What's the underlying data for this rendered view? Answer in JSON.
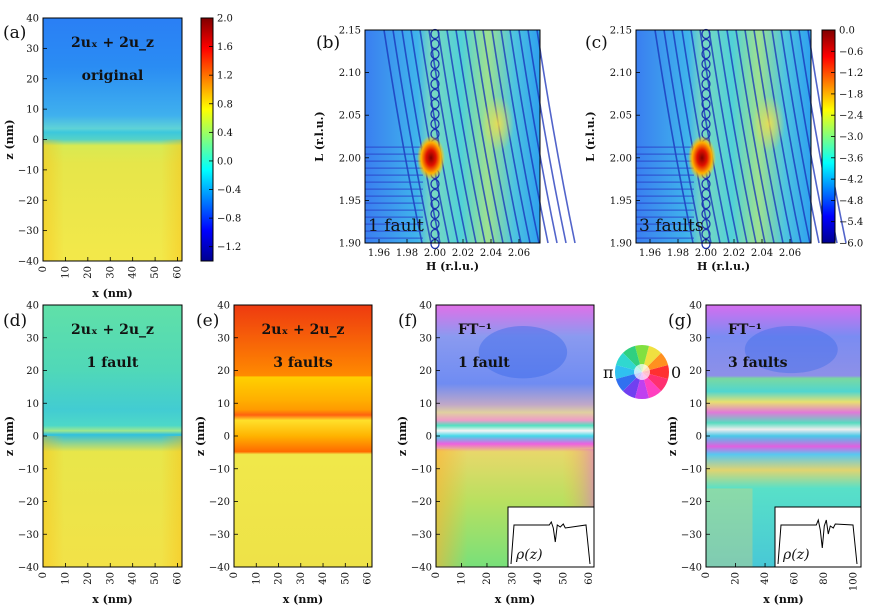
{
  "figure": "multi-panel strain and diffraction maps",
  "colorbars": {
    "strain": {
      "min": -1.4,
      "max": 2.0,
      "ticks": [
        "2.0",
        "1.6",
        "1.2",
        "0.8",
        "0.4",
        "0.0",
        "−0.4",
        "−0.8",
        "−1.2"
      ],
      "tick_values": [
        2.0,
        1.6,
        1.2,
        0.8,
        0.4,
        0.0,
        -0.4,
        -0.8,
        -1.2
      ]
    },
    "intensity": {
      "min": -6.0,
      "max": 0.0,
      "ticks": [
        "0.0",
        "−0.6",
        "−1.2",
        "−1.8",
        "−2.4",
        "−3.0",
        "−3.6",
        "−4.2",
        "−4.8",
        "−5.4",
        "−6.0"
      ],
      "tick_values": [
        0.0,
        -0.6,
        -1.2,
        -1.8,
        -2.4,
        -3.0,
        -3.6,
        -4.2,
        -4.8,
        -5.4,
        -6.0
      ]
    }
  },
  "phase_wheel": {
    "label_left": "π",
    "label_right": "0"
  },
  "chart_data": [
    {
      "id": "a",
      "type": "heatmap",
      "panel_label": "(a)",
      "annotation": [
        "2uₓ + 2u_z",
        "original"
      ],
      "annotation_text": "2uₓ + 2u_z",
      "annotation_sub": "original",
      "xlabel": "x (nm)",
      "ylabel": "z (nm)",
      "xlim": [
        0,
        62
      ],
      "ylim": [
        -40,
        40
      ],
      "xticks": [
        0,
        10,
        20,
        30,
        40,
        50,
        60
      ],
      "yticks": [
        40,
        30,
        20,
        10,
        0,
        -10,
        -20,
        -30,
        -40
      ],
      "colorbar": "strain"
    },
    {
      "id": "b",
      "type": "heatmap",
      "panel_label": "(b)",
      "annotation_text": "1 fault",
      "xlabel": "H (r.l.u.)",
      "ylabel": "L (r.l.u.)",
      "xlim": [
        1.95,
        2.075
      ],
      "ylim": [
        1.9,
        2.15
      ],
      "xticks": [
        1.96,
        1.98,
        2.0,
        2.02,
        2.04,
        2.06
      ],
      "yticks": [
        2.15,
        2.1,
        2.05,
        2.0,
        1.95,
        1.9
      ],
      "colorbar": "intensity"
    },
    {
      "id": "c",
      "type": "heatmap",
      "panel_label": "(c)",
      "annotation_text": "3 faults",
      "xlabel": "H (r.l.u.)",
      "ylabel": "L (r.l.u.)",
      "xlim": [
        1.95,
        2.075
      ],
      "ylim": [
        1.9,
        2.15
      ],
      "xticks": [
        1.96,
        1.98,
        2.0,
        2.02,
        2.04,
        2.06
      ],
      "yticks": [
        2.15,
        2.1,
        2.05,
        2.0,
        1.95,
        1.9
      ],
      "colorbar": "intensity"
    },
    {
      "id": "d",
      "type": "heatmap",
      "panel_label": "(d)",
      "annotation_text": "2uₓ + 2u_z",
      "annotation_sub": "1 fault",
      "xlabel": "x (nm)",
      "ylabel": "z (nm)",
      "xlim": [
        0,
        62
      ],
      "ylim": [
        -40,
        40
      ],
      "xticks": [
        0,
        10,
        20,
        30,
        40,
        50,
        60
      ],
      "yticks": [
        40,
        30,
        20,
        10,
        0,
        -10,
        -20,
        -30,
        -40
      ],
      "colorbar": "strain"
    },
    {
      "id": "e",
      "type": "heatmap",
      "panel_label": "(e)",
      "annotation_text": "2uₓ + 2u_z",
      "annotation_sub": "3 faults",
      "xlabel": "x (nm)",
      "ylabel": "z (nm)",
      "xlim": [
        0,
        62
      ],
      "ylim": [
        -40,
        40
      ],
      "xticks": [
        0,
        10,
        20,
        30,
        40,
        50,
        60
      ],
      "yticks": [
        40,
        30,
        20,
        10,
        0,
        -10,
        -20,
        -30,
        -40
      ],
      "colorbar": "strain"
    },
    {
      "id": "f",
      "type": "heatmap",
      "panel_label": "(f)",
      "annotation_text": "FT⁻¹",
      "annotation_sub": "1 fault",
      "inset_label": "ρ(z)",
      "xlabel": "x (nm)",
      "ylabel": "z (nm)",
      "xlim": [
        0,
        62
      ],
      "ylim": [
        -40,
        40
      ],
      "xticks": [
        0,
        10,
        20,
        30,
        40,
        50,
        60
      ],
      "yticks": [
        40,
        30,
        20,
        10,
        0,
        -10,
        -20,
        -30,
        -40
      ],
      "colorbar": "phase"
    },
    {
      "id": "g",
      "type": "heatmap",
      "panel_label": "(g)",
      "annotation_text": "FT⁻¹",
      "annotation_sub": "3 faults",
      "inset_label": "ρ(z)",
      "xlabel": "x (nm)",
      "ylabel": "z (nm)",
      "xlim": [
        0,
        105
      ],
      "ylim": [
        -40,
        40
      ],
      "xticks": [
        0,
        20,
        40,
        60,
        80,
        100
      ],
      "yticks": [
        40,
        30,
        20,
        10,
        0,
        -10,
        -20,
        -30,
        -40
      ],
      "colorbar": "phase"
    }
  ]
}
